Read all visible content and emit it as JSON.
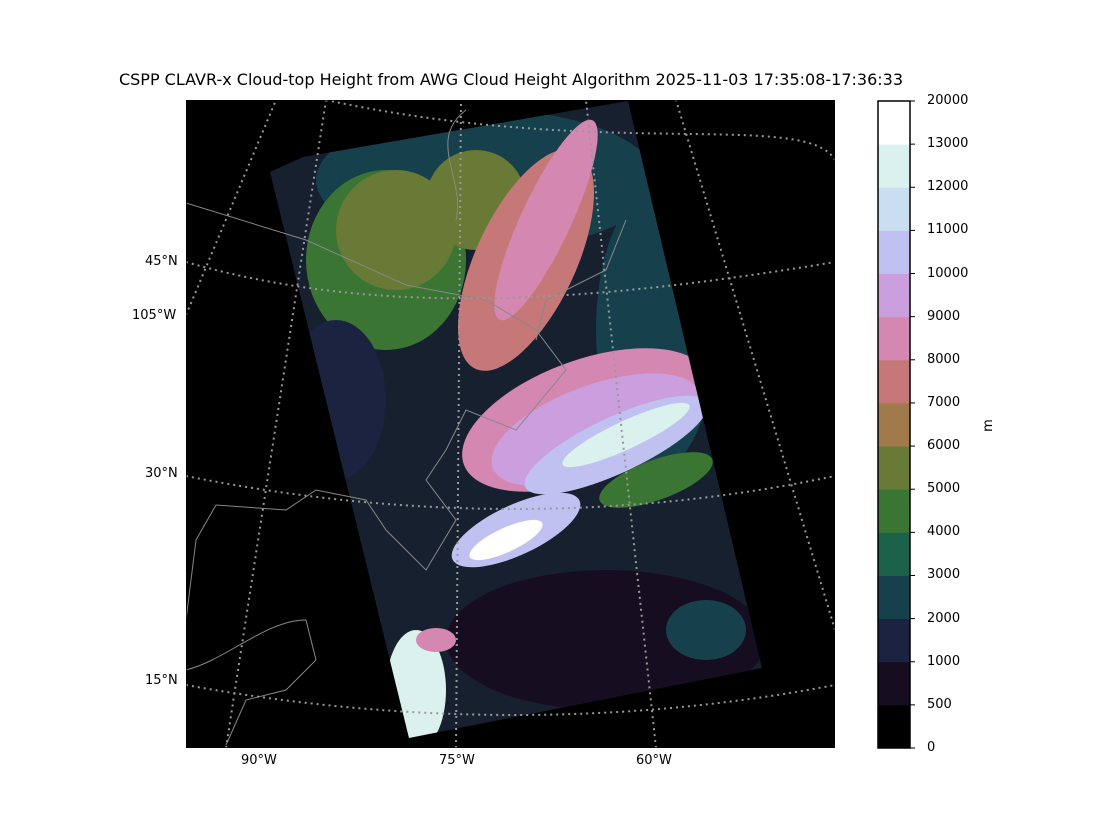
{
  "title": "CSPP CLAVR-x Cloud-top Height from AWG Cloud Height Algorithm 2025-11-03 17:35:08-17:36:33",
  "map": {
    "lat_labels": [
      "45°N",
      "30°N",
      "15°N"
    ],
    "lon_labels_left": [
      "105°W"
    ],
    "lon_labels_bottom": [
      "90°W",
      "75°W",
      "60°W"
    ],
    "background_color": "#000000",
    "gridline_color": "#999999",
    "coastline_color": "#888888"
  },
  "colorbar": {
    "unit": "m",
    "ticks": [
      "0",
      "500",
      "1000",
      "2000",
      "3000",
      "4000",
      "5000",
      "6000",
      "7000",
      "8000",
      "9000",
      "10000",
      "11000",
      "12000",
      "13000",
      "20000"
    ],
    "colors": [
      "#000000",
      "#170d20",
      "#1b2340",
      "#17404d",
      "#1c614a",
      "#3a7534",
      "#687a35",
      "#a07a4a",
      "#c67878",
      "#d487b1",
      "#cb9edd",
      "#c1c1f1",
      "#c9dff1",
      "#daf1ee",
      "#ffffff"
    ]
  }
}
